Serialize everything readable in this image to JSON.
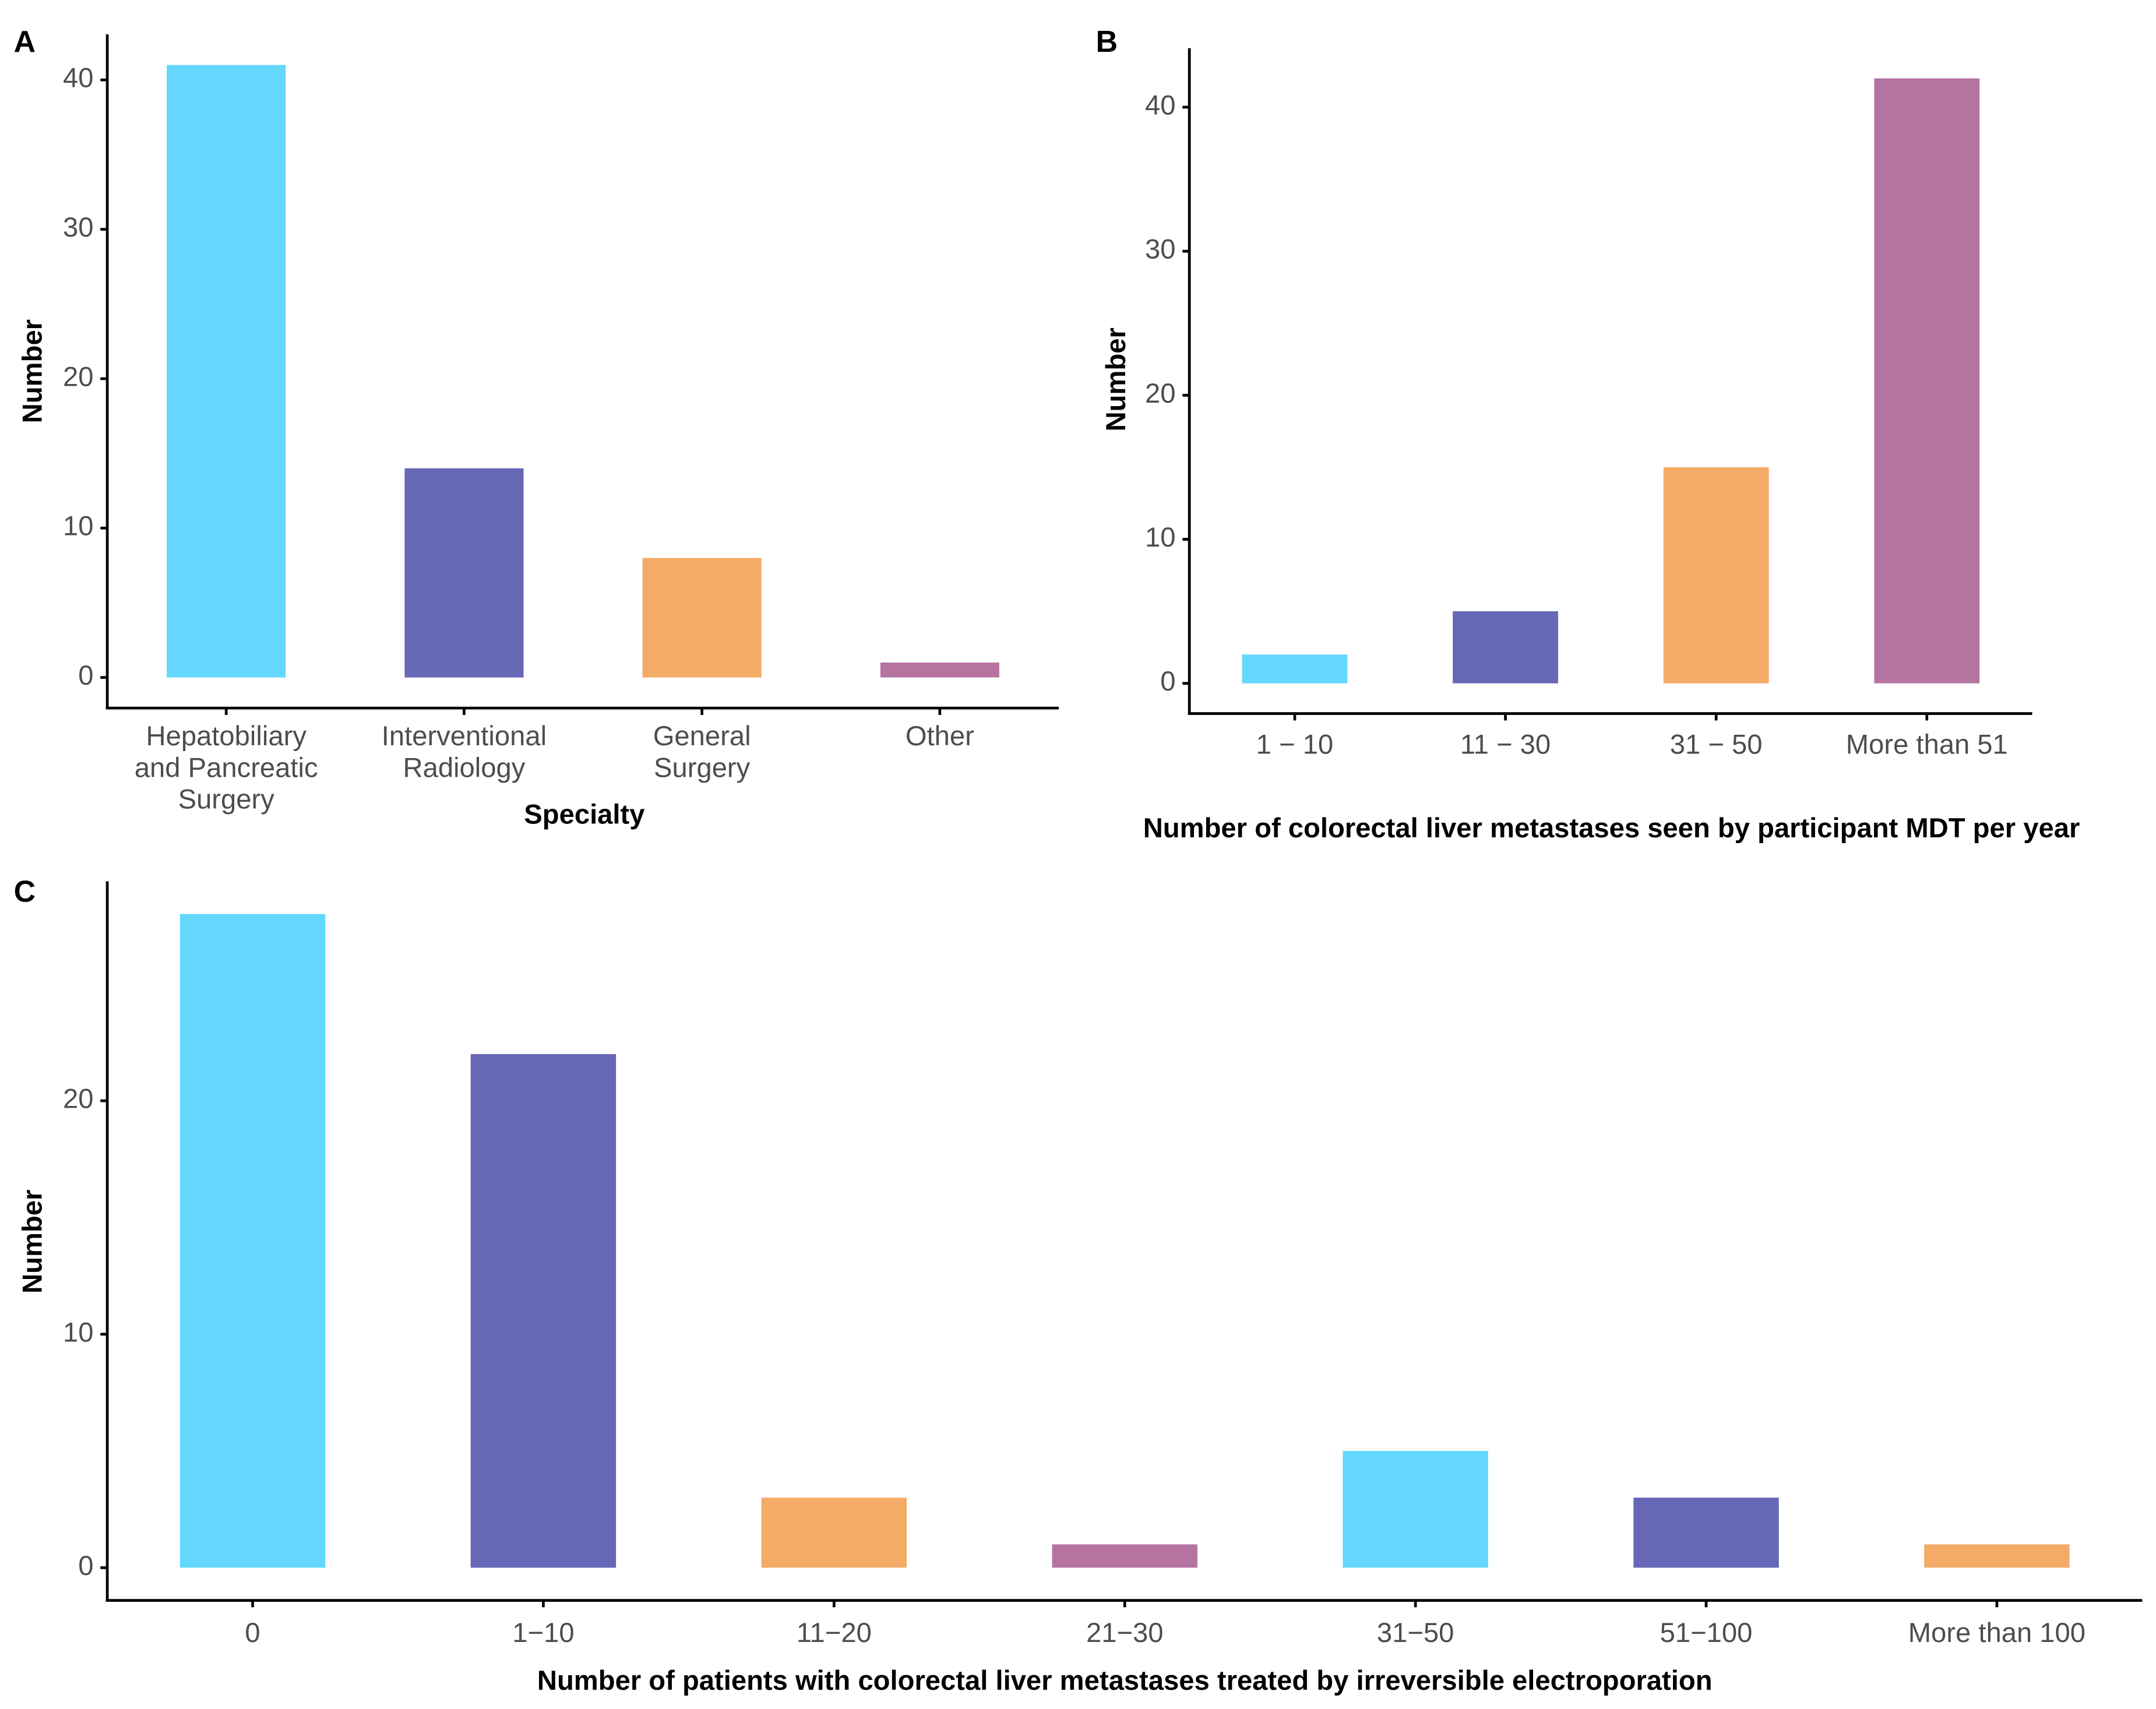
{
  "chart_data": [
    {
      "type": "bar",
      "label": "A",
      "xlabel": "Specialty",
      "ylabel": "Number",
      "categories": [
        [
          "Hepatobiliary",
          "and Pancreatic",
          "Surgery"
        ],
        [
          "Interventional",
          "Radiology"
        ],
        [
          "General",
          "Surgery"
        ],
        [
          "Other"
        ]
      ],
      "values": [
        41,
        14,
        8,
        1
      ],
      "colors": [
        "#63d7fe",
        "#6667b6",
        "#f3ab67",
        "#b574a0"
      ],
      "ylim": [
        -2.05,
        43.05
      ],
      "yticks": [
        0,
        10,
        20,
        30,
        40
      ]
    },
    {
      "type": "bar",
      "label": "B",
      "xlabel": "Number of colorectal liver metastases seen by participant MDT per year",
      "ylabel": "Number",
      "categories": [
        "1 − 10",
        "11 − 30",
        "31 − 50",
        "More than 51"
      ],
      "values": [
        2,
        5,
        15,
        42
      ],
      "colors": [
        "#63d7fe",
        "#6667b6",
        "#f3ab67",
        "#b574a0"
      ],
      "ylim": [
        -2.1,
        44.1
      ],
      "yticks": [
        0,
        10,
        20,
        30,
        40
      ]
    },
    {
      "type": "bar",
      "label": "C",
      "xlabel": "Number of patients with colorectal liver metastases treated by irreversible electroporation",
      "ylabel": "Number",
      "categories": [
        "0",
        "1−10",
        "11−20",
        "21−30",
        "31−50",
        "51−100",
        "More than 100"
      ],
      "values": [
        28,
        22,
        3,
        1,
        5,
        3,
        1
      ],
      "colors": [
        "#63d7fe",
        "#6667b6",
        "#f3ab67",
        "#b574a0",
        "#63d7fe",
        "#6667b6",
        "#f3ab67"
      ],
      "ylim": [
        -1.4,
        29.4
      ],
      "yticks": [
        0,
        10,
        20
      ]
    }
  ]
}
